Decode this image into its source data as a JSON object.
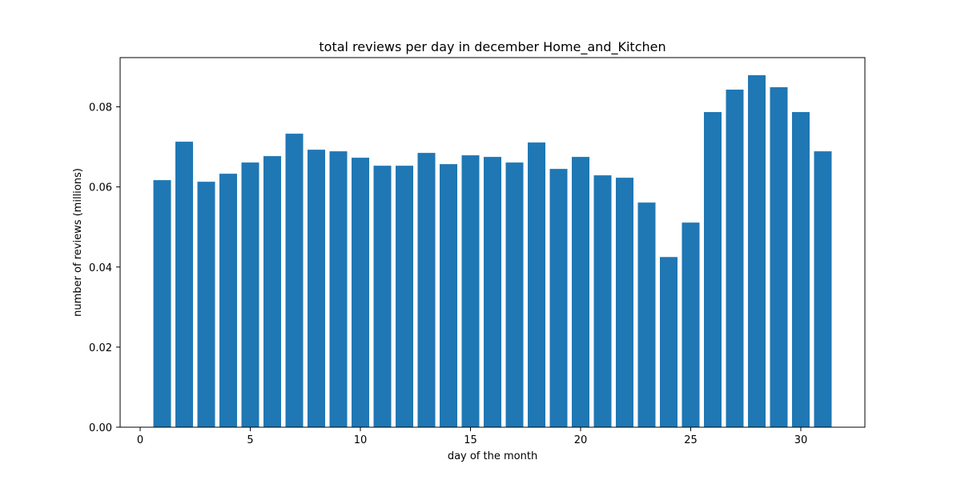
{
  "chart_data": {
    "type": "bar",
    "title": "total reviews per day in december Home_and_Kitchen",
    "xlabel": "day of the month",
    "ylabel": "number of reviews (millions)",
    "x": [
      1,
      2,
      3,
      4,
      5,
      6,
      7,
      8,
      9,
      10,
      11,
      12,
      13,
      14,
      15,
      16,
      17,
      18,
      19,
      20,
      21,
      22,
      23,
      24,
      25,
      26,
      27,
      28,
      29,
      30,
      31
    ],
    "values": [
      0.0617,
      0.0713,
      0.0613,
      0.0633,
      0.0661,
      0.0677,
      0.0733,
      0.0693,
      0.0689,
      0.0673,
      0.0653,
      0.0653,
      0.0685,
      0.0657,
      0.0679,
      0.0675,
      0.0661,
      0.0711,
      0.0645,
      0.0675,
      0.0629,
      0.0623,
      0.0561,
      0.0425,
      0.0511,
      0.0787,
      0.0843,
      0.0879,
      0.0849,
      0.0787,
      0.0689
    ],
    "xlim": [
      -0.91,
      32.91
    ],
    "ylim": [
      0,
      0.0923
    ],
    "xticks": [
      0,
      5,
      10,
      15,
      20,
      25,
      30
    ],
    "xtick_labels": [
      "0",
      "5",
      "10",
      "15",
      "20",
      "25",
      "30"
    ],
    "yticks": [
      0,
      0.02,
      0.04,
      0.06,
      0.08
    ],
    "ytick_labels": [
      "0.00",
      "0.02",
      "0.04",
      "0.06",
      "0.08"
    ],
    "bar_color": "#1f77b4",
    "grid": false
  }
}
